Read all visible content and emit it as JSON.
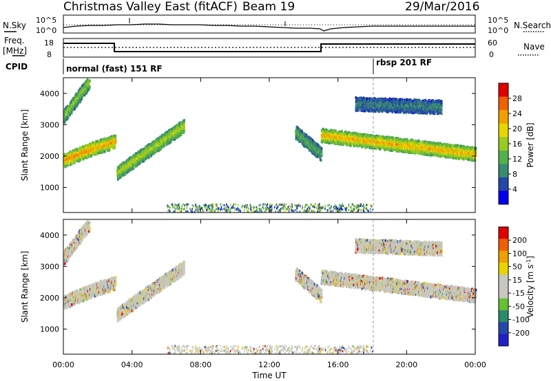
{
  "header": {
    "title": "Christmas Valley East (fitACF)",
    "beam": "Beam 19",
    "date": "29/Mar/2016"
  },
  "sky_panel": {
    "left_label": "N.Sky",
    "right_label": "N.Search",
    "left_ticks": [
      "10^5",
      "10^0"
    ],
    "right_ticks": [
      "10^5",
      "10^0"
    ]
  },
  "freq_panel": {
    "left_label_1": "Freq.",
    "left_label_2": "[MHz]",
    "right_label": "Nave",
    "left_ticks": [
      "18",
      "8"
    ],
    "right_ticks": [
      "60",
      "0"
    ]
  },
  "cpid": {
    "label": "CPID",
    "modes": [
      {
        "name": "normal (fast) 151 RF",
        "start_hour": 0
      },
      {
        "name": "rbsp 201 RF",
        "start_hour": 18
      }
    ]
  },
  "time_axis": {
    "label": "Time UT",
    "ticks": [
      "00:00",
      "04:00",
      "08:00",
      "12:00",
      "16:00",
      "20:00",
      "00:00"
    ]
  },
  "colors": {
    "power_scale": [
      "#0000ee",
      "#2448a8",
      "#3a8a70",
      "#55b04a",
      "#99cc22",
      "#e8d400",
      "#f0a000",
      "#f06000",
      "#e00000"
    ],
    "velocity_scale": [
      "#e00000",
      "#f06000",
      "#f0a000",
      "#e8d400",
      "#c8c8c0",
      "#c8c8c0",
      "#66c033",
      "#2d8a6a",
      "#2448a8",
      "#2020c8"
    ]
  },
  "chart_data": [
    {
      "type": "heatmap",
      "title": "",
      "xlabel": "",
      "ylabel": "Slant Range [km]",
      "xlim": [
        0,
        24
      ],
      "ylim": [
        200,
        4500
      ],
      "yticks": [
        1000,
        2000,
        3000,
        4000
      ],
      "colorbar": {
        "label": "Power [dB]",
        "range": [
          0,
          32
        ],
        "ticks": [
          4,
          8,
          12,
          16,
          20,
          24,
          28
        ]
      },
      "echo_bands": [
        {
          "start_hour": 0.0,
          "end_hour": 1.8,
          "range_start_km": 1900,
          "range_end_km": 2300,
          "typical_power_db": 26
        },
        {
          "start_hour": 1.8,
          "end_hour": 3.0,
          "range_start_km": 2300,
          "range_end_km": 2500,
          "typical_power_db": 24
        },
        {
          "start_hour": 0.0,
          "end_hour": 1.5,
          "range_start_km": 3300,
          "range_end_km": 4400,
          "typical_power_db": 16
        },
        {
          "start_hour": 3.1,
          "end_hour": 7.0,
          "range_start_km": 1500,
          "range_end_km": 3000,
          "typical_power_db": 18
        },
        {
          "start_hour": 13.5,
          "end_hour": 15.0,
          "range_start_km": 2800,
          "range_end_km": 2100,
          "typical_power_db": 12
        },
        {
          "start_hour": 15.0,
          "end_hour": 24.0,
          "range_start_km": 2700,
          "range_end_km": 2100,
          "typical_power_db": 24
        },
        {
          "start_hour": 17.0,
          "end_hour": 22.0,
          "range_start_km": 3700,
          "range_end_km": 3600,
          "typical_power_db": 8
        }
      ]
    },
    {
      "type": "heatmap",
      "title": "",
      "xlabel": "Time UT",
      "ylabel": "Slant Range [km]",
      "xlim": [
        0,
        24
      ],
      "ylim": [
        200,
        4500
      ],
      "yticks": [
        1000,
        2000,
        3000,
        4000
      ],
      "colorbar": {
        "label": "Velocity [m s^-1]",
        "range": [
          -250,
          250
        ],
        "ticks": [
          200,
          100,
          50,
          15,
          -15,
          -50,
          -100,
          -200
        ]
      }
    }
  ]
}
